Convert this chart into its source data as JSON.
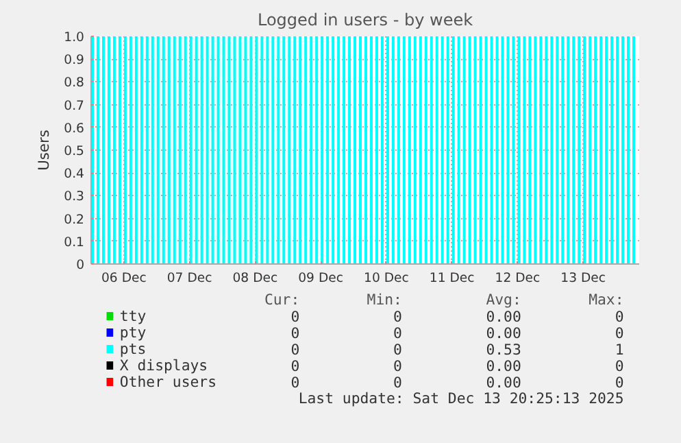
{
  "chart_data": {
    "type": "area",
    "title": "Logged in users - by week",
    "ylabel": "Users",
    "ylim": [
      0,
      1
    ],
    "yticks": [
      0,
      0.1,
      0.2,
      0.3,
      0.4,
      0.5,
      0.6,
      0.7,
      0.8,
      0.9,
      {
        "value": 1,
        "label": "1.0"
      }
    ],
    "xlim": [
      "2025-12-05T12:00",
      "2025-12-13T20:30"
    ],
    "xticks": [
      {
        "value": "2025-12-06",
        "label": "06 Dec"
      },
      {
        "value": "2025-12-07",
        "label": "07 Dec"
      },
      {
        "value": "2025-12-08",
        "label": "08 Dec"
      },
      {
        "value": "2025-12-09",
        "label": "09 Dec"
      },
      {
        "value": "2025-12-10",
        "label": "10 Dec"
      },
      {
        "value": "2025-12-11",
        "label": "11 Dec"
      },
      {
        "value": "2025-12-12",
        "label": "12 Dec"
      },
      {
        "value": "2025-12-13",
        "label": "13 Dec"
      }
    ],
    "grid": true,
    "legend": "bottom",
    "series": [
      {
        "name": "tty",
        "color": "#00dd00"
      },
      {
        "name": "pty",
        "color": "#0000ff"
      },
      {
        "name": "pts",
        "color": "#00ffff",
        "x": [
          "2025-12-05T12:00",
          "2025-12-05T13:00",
          "2025-12-05T14:00",
          "2025-12-05T15:00",
          "2025-12-05T16:00",
          "2025-12-05T17:00",
          "2025-12-05T18:00",
          "2025-12-05T19:00",
          "2025-12-05T20:00",
          "2025-12-05T21:00",
          "2025-12-05T22:00",
          "2025-12-05T23:00",
          "2025-12-06T00:00",
          "2025-12-06T01:00",
          "2025-12-06T02:00",
          "2025-12-06T03:00",
          "2025-12-06T04:00",
          "2025-12-06T05:00",
          "2025-12-06T06:00",
          "2025-12-06T07:00",
          "2025-12-06T08:00",
          "2025-12-06T09:00",
          "2025-12-06T10:00",
          "2025-12-06T11:00",
          "2025-12-06T12:00",
          "2025-12-06T13:00",
          "2025-12-06T14:00",
          "2025-12-06T15:00",
          "2025-12-06T16:00",
          "2025-12-06T17:00",
          "2025-12-06T18:00",
          "2025-12-06T19:00",
          "2025-12-06T20:00",
          "2025-12-06T21:00",
          "2025-12-06T22:00",
          "2025-12-06T23:00",
          "2025-12-07T00:00",
          "2025-12-07T01:00",
          "2025-12-07T02:00",
          "2025-12-07T03:00",
          "2025-12-07T04:00",
          "2025-12-07T05:00",
          "2025-12-07T06:00",
          "2025-12-07T07:00",
          "2025-12-07T08:00",
          "2025-12-07T09:00",
          "2025-12-07T10:00",
          "2025-12-07T11:00",
          "2025-12-07T12:00",
          "2025-12-07T13:00",
          "2025-12-07T14:00",
          "2025-12-07T15:00",
          "2025-12-07T16:00",
          "2025-12-07T17:00",
          "2025-12-07T18:00",
          "2025-12-07T19:00",
          "2025-12-07T20:00",
          "2025-12-07T21:00",
          "2025-12-07T22:00",
          "2025-12-07T23:00",
          "2025-12-08T00:00",
          "2025-12-08T01:00",
          "2025-12-08T02:00",
          "2025-12-08T03:00",
          "2025-12-08T04:00",
          "2025-12-08T05:00",
          "2025-12-08T06:00",
          "2025-12-08T07:00",
          "2025-12-08T08:00",
          "2025-12-08T09:00",
          "2025-12-08T10:00",
          "2025-12-08T11:00",
          "2025-12-08T12:00",
          "2025-12-08T13:00",
          "2025-12-08T14:00",
          "2025-12-08T15:00",
          "2025-12-08T16:00",
          "2025-12-08T17:00",
          "2025-12-08T18:00",
          "2025-12-08T19:00",
          "2025-12-08T20:00",
          "2025-12-08T21:00",
          "2025-12-08T22:00",
          "2025-12-08T23:00",
          "2025-12-09T00:00",
          "2025-12-09T01:00",
          "2025-12-09T02:00",
          "2025-12-09T03:00",
          "2025-12-09T04:00",
          "2025-12-09T05:00",
          "2025-12-09T06:00",
          "2025-12-09T07:00",
          "2025-12-09T08:00",
          "2025-12-09T09:00",
          "2025-12-09T10:00",
          "2025-12-09T11:00",
          "2025-12-09T12:00",
          "2025-12-09T13:00",
          "2025-12-09T14:00",
          "2025-12-09T15:00",
          "2025-12-09T16:00",
          "2025-12-09T17:00",
          "2025-12-09T18:00",
          "2025-12-09T19:00",
          "2025-12-09T20:00",
          "2025-12-09T21:00",
          "2025-12-09T22:00",
          "2025-12-09T23:00",
          "2025-12-10T00:00",
          "2025-12-10T01:00",
          "2025-12-10T02:00",
          "2025-12-10T03:00",
          "2025-12-10T04:00",
          "2025-12-10T05:00",
          "2025-12-10T06:00",
          "2025-12-10T07:00",
          "2025-12-10T08:00",
          "2025-12-10T09:00",
          "2025-12-10T10:00",
          "2025-12-10T11:00",
          "2025-12-10T12:00",
          "2025-12-10T13:00",
          "2025-12-10T14:00",
          "2025-12-10T15:00",
          "2025-12-10T16:00",
          "2025-12-10T17:00",
          "2025-12-10T18:00",
          "2025-12-10T19:00",
          "2025-12-10T20:00",
          "2025-12-10T21:00",
          "2025-12-10T22:00",
          "2025-12-10T23:00",
          "2025-12-11T00:00",
          "2025-12-11T01:00",
          "2025-12-11T02:00",
          "2025-12-11T03:00",
          "2025-12-11T04:00",
          "2025-12-11T05:00",
          "2025-12-11T06:00",
          "2025-12-11T07:00",
          "2025-12-11T08:00",
          "2025-12-11T09:00",
          "2025-12-11T10:00",
          "2025-12-11T11:00",
          "2025-12-11T12:00",
          "2025-12-11T13:00",
          "2025-12-11T14:00",
          "2025-12-11T15:00",
          "2025-12-11T16:00",
          "2025-12-11T17:00",
          "2025-12-11T18:00",
          "2025-12-11T19:00",
          "2025-12-11T20:00",
          "2025-12-11T21:00",
          "2025-12-11T22:00",
          "2025-12-11T23:00",
          "2025-12-12T00:00",
          "2025-12-12T01:00",
          "2025-12-12T02:00",
          "2025-12-12T03:00",
          "2025-12-12T04:00",
          "2025-12-12T05:00",
          "2025-12-12T06:00",
          "2025-12-12T07:00",
          "2025-12-12T08:00",
          "2025-12-12T09:00",
          "2025-12-12T10:00",
          "2025-12-12T11:00",
          "2025-12-12T12:00",
          "2025-12-12T13:00",
          "2025-12-12T14:00",
          "2025-12-12T15:00",
          "2025-12-12T16:00",
          "2025-12-12T17:00",
          "2025-12-12T18:00",
          "2025-12-12T19:00",
          "2025-12-12T20:00",
          "2025-12-12T21:00",
          "2025-12-12T22:00",
          "2025-12-12T23:00",
          "2025-12-13T00:00",
          "2025-12-13T01:00",
          "2025-12-13T02:00",
          "2025-12-13T03:00",
          "2025-12-13T04:00",
          "2025-12-13T05:00",
          "2025-12-13T06:00",
          "2025-12-13T07:00",
          "2025-12-13T08:00",
          "2025-12-13T09:00",
          "2025-12-13T10:00",
          "2025-12-13T11:00",
          "2025-12-13T12:00",
          "2025-12-13T13:00",
          "2025-12-13T14:00",
          "2025-12-13T15:00",
          "2025-12-13T16:00",
          "2025-12-13T17:00",
          "2025-12-13T18:00",
          "2025-12-13T19:00",
          "2025-12-13T20:00"
        ],
        "values": [
          1,
          0,
          1,
          0,
          1,
          0,
          1,
          0,
          1,
          0,
          1,
          0,
          1,
          0,
          1,
          0,
          1,
          0,
          1,
          0,
          1,
          0,
          1,
          0,
          1,
          0,
          1,
          0,
          1,
          0,
          1,
          0,
          1,
          0,
          1,
          0,
          1,
          0,
          1,
          0,
          1,
          0,
          1,
          0,
          1,
          0,
          1,
          0,
          1,
          0,
          1,
          0,
          1,
          0,
          1,
          0,
          1,
          0,
          1,
          0,
          1,
          0,
          1,
          0,
          1,
          0,
          1,
          0,
          1,
          0,
          1,
          0,
          1,
          0,
          1,
          0,
          1,
          0,
          1,
          0,
          1,
          0,
          1,
          0,
          1,
          0,
          1,
          0,
          1,
          0,
          1,
          0,
          1,
          0,
          1,
          0,
          1,
          0,
          1,
          0,
          1,
          0,
          1,
          0,
          1,
          0,
          1,
          0,
          1,
          0,
          1,
          0,
          1,
          0,
          1,
          0,
          1,
          0,
          1,
          0,
          1,
          0,
          1,
          0,
          1,
          0,
          1,
          0,
          1,
          0,
          1,
          0,
          1,
          0,
          1,
          0,
          1,
          0,
          1,
          0,
          1,
          0,
          1,
          0,
          1,
          0,
          1,
          0,
          1,
          0,
          1,
          0,
          1,
          0,
          1,
          0,
          1,
          0,
          1,
          0,
          1,
          0,
          1,
          0,
          1,
          0,
          1,
          0,
          1,
          0,
          1,
          0,
          1,
          0,
          1,
          0,
          1,
          0,
          1,
          0,
          1,
          0,
          1,
          0,
          1,
          0,
          1,
          0,
          1,
          0,
          1,
          0,
          1,
          0,
          1,
          0,
          1,
          0,
          1,
          0,
          1
        ]
      },
      {
        "name": "X displays",
        "color": "#000000"
      },
      {
        "name": "Other users",
        "color": "#ff0000"
      }
    ],
    "annotations": [
      "Cur:",
      "Min:",
      "Avg:",
      "Max:",
      "0",
      "0",
      "0.00",
      "0",
      "0",
      "0",
      "0.00",
      "0",
      "0",
      "0",
      "0.53",
      "1",
      "0",
      "0",
      "0.00",
      "0",
      "0",
      "0",
      "0.00",
      "0",
      "Last update: Sat Dec 13 20:25:13 2025"
    ]
  }
}
